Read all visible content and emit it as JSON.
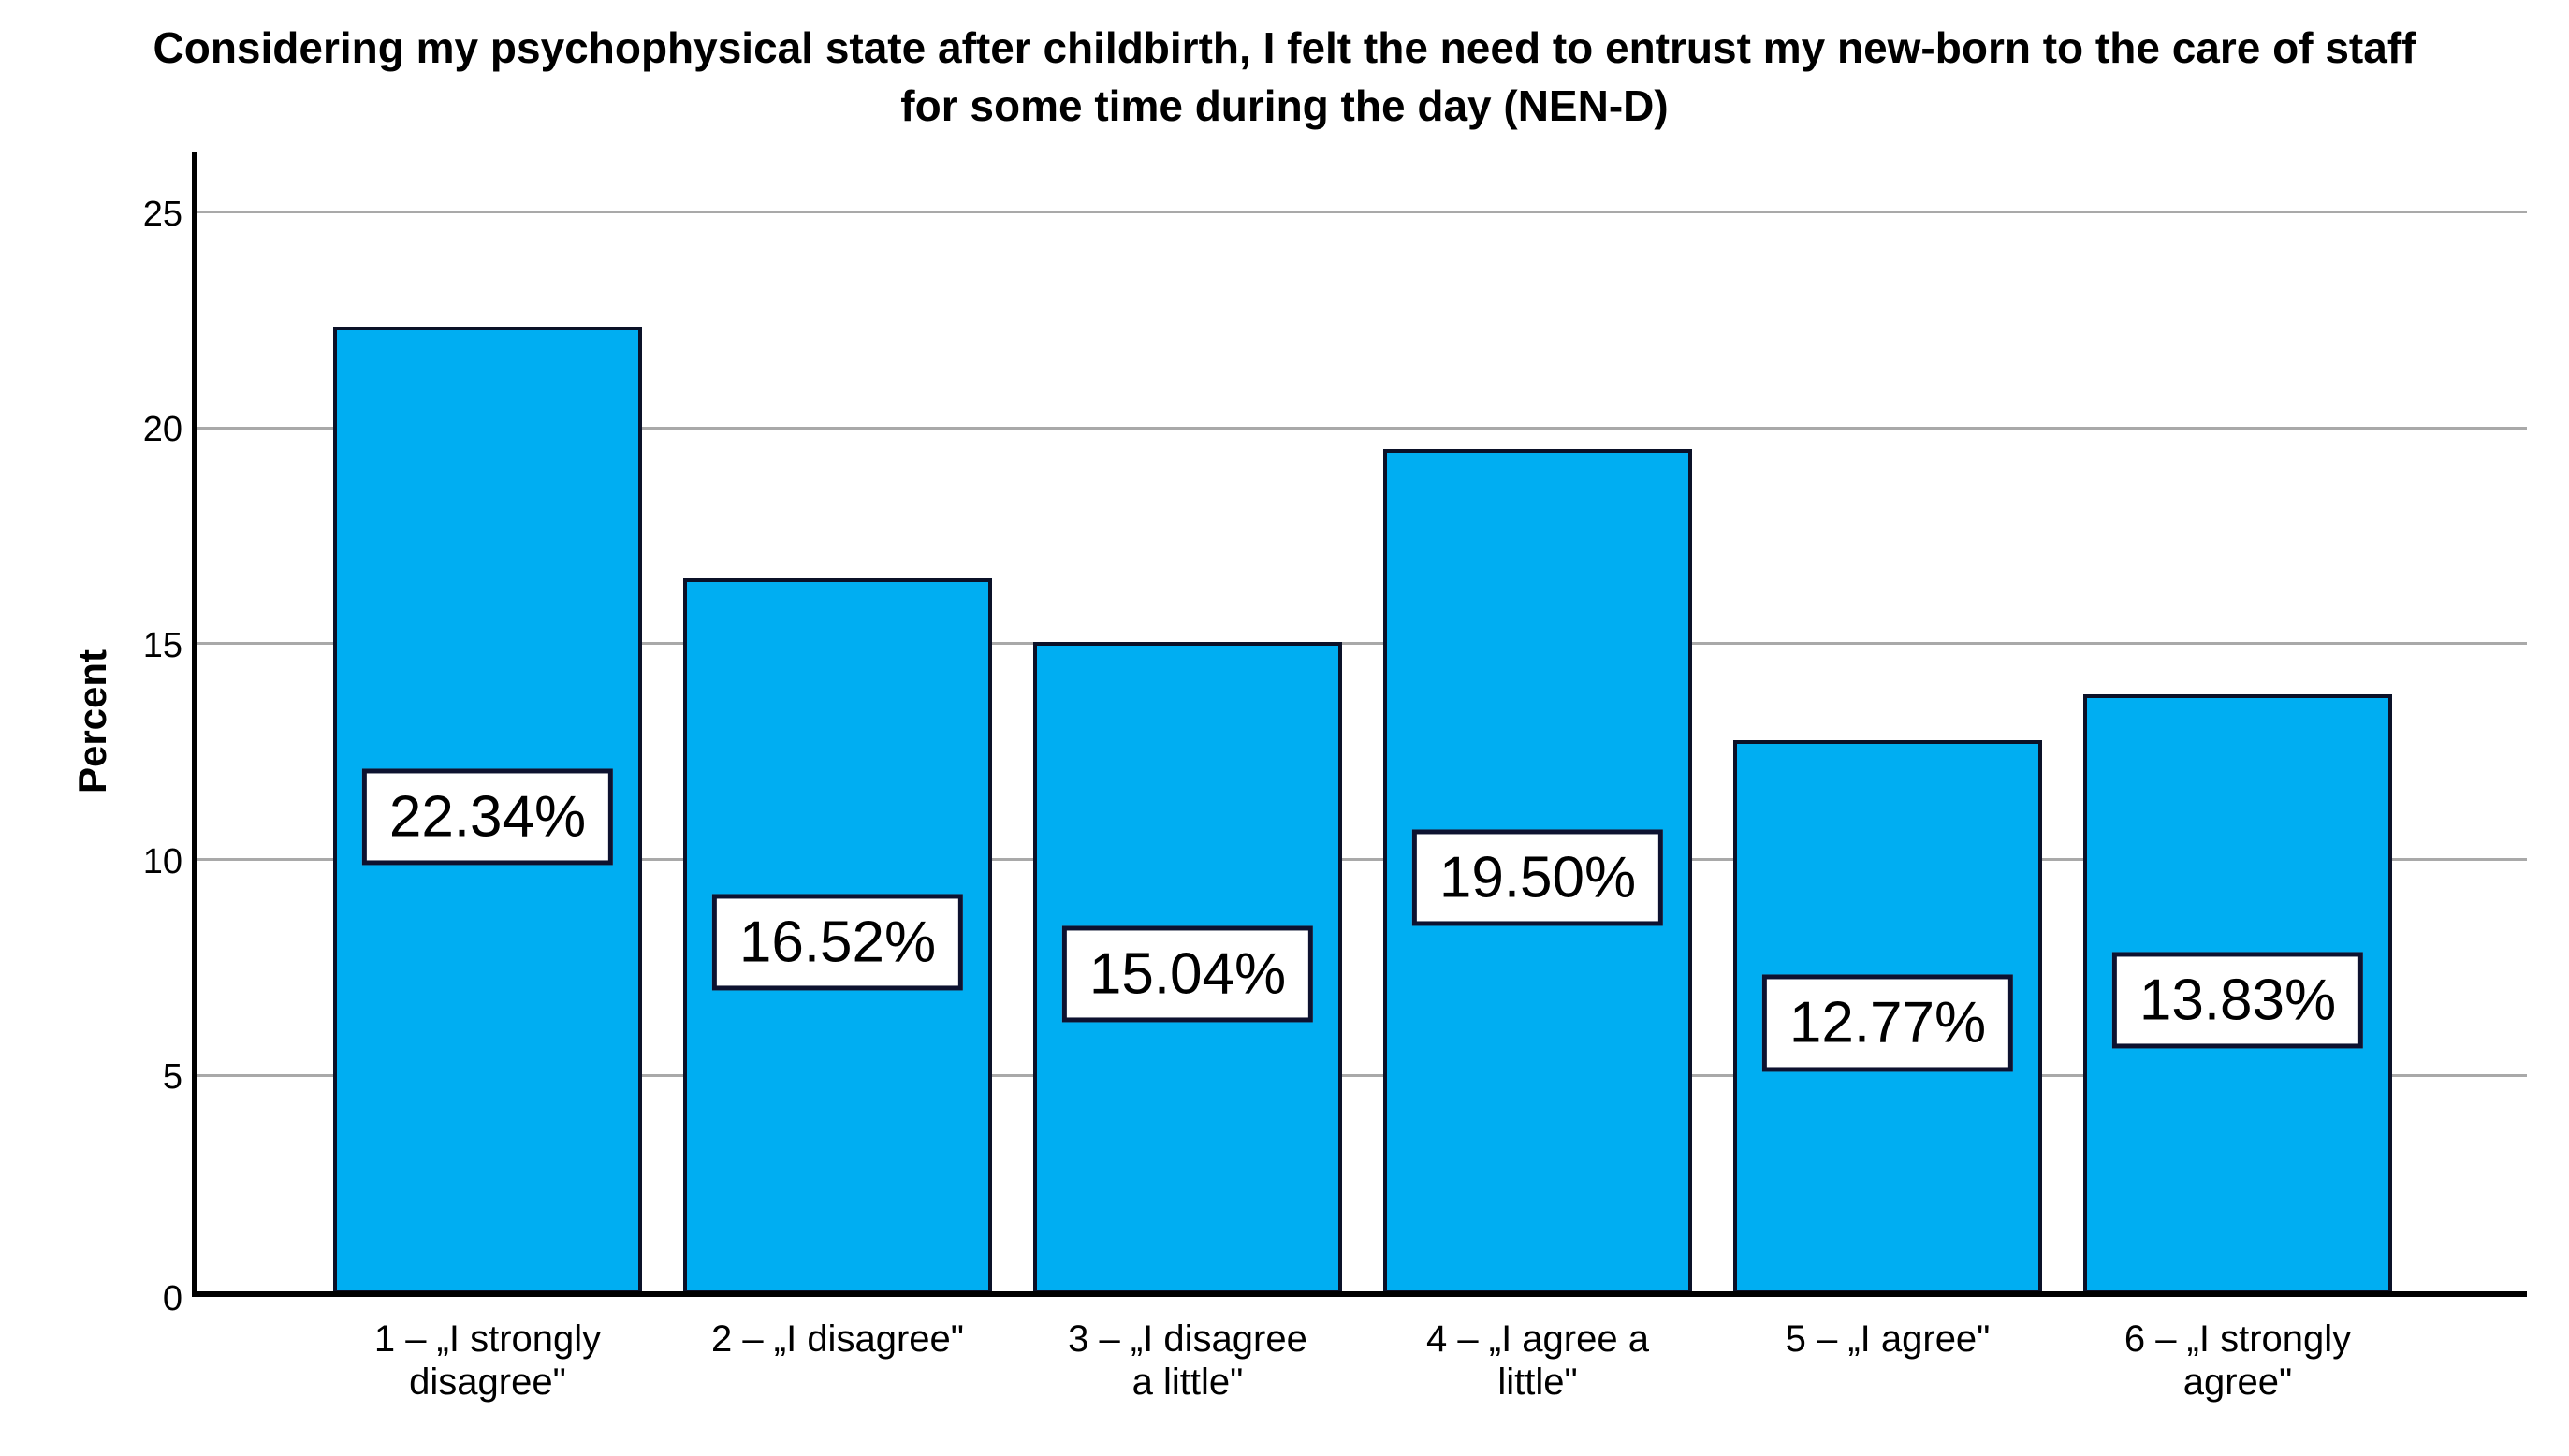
{
  "figure": {
    "title_line1": "Considering my psychophysical state after childbirth, I felt the need to entrust my new-born to the care of staff",
    "title_line2": "for some time during the day (NEN-D)"
  },
  "chart_data": {
    "type": "bar",
    "title": "Considering my psychophysical state after childbirth, I felt the need to entrust my new-born to the care of staff for some time during the day (NEN-D)",
    "xlabel": "",
    "ylabel": "Percent",
    "ylim": [
      0,
      26.4
    ],
    "yticks": [
      0,
      5,
      10,
      15,
      20,
      25
    ],
    "ytick_labels": [
      "0",
      "5",
      "10",
      "15",
      "20",
      "25"
    ],
    "grid": "horizontal-gridlines-on",
    "legend": "none",
    "bar_color": "#00aef2",
    "bar_border_color": "#0b1128",
    "categories": [
      "1 – „I strongly disagree\"",
      "2 – „I disagree\"",
      "3 – „I disagree a little\"",
      "4 – „I agree a little\"",
      "5 – „I agree\"",
      "6 – „I strongly agree\""
    ],
    "categories_display": [
      "1 – „I strongly\ndisagree\"",
      "2 – „I disagree\"",
      "3 – „I disagree\na little\"",
      "4 – „I agree a\nlittle\"",
      "5 – „I agree\"",
      "6 – „I strongly\nagree\""
    ],
    "values": [
      22.34,
      16.52,
      15.04,
      19.5,
      12.77,
      13.83
    ],
    "value_labels": [
      "22.34%",
      "16.52%",
      "15.04%",
      "19.50%",
      "12.77%",
      "13.83%"
    ]
  }
}
